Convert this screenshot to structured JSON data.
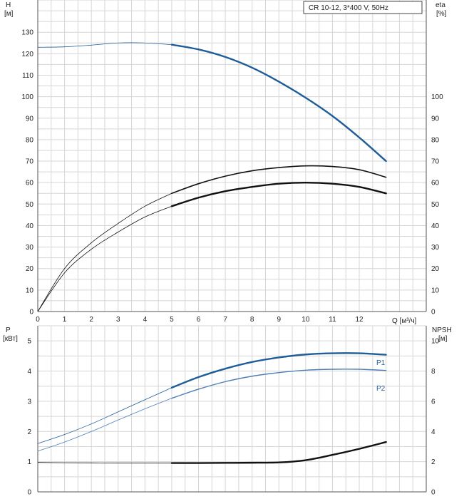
{
  "title_box": "CR 10-12, 3*400 V, 50Hz",
  "colors": {
    "head": "#1f5d99",
    "p1": "#1f5d99",
    "p2": "#4f7fb8",
    "eta": "#111111",
    "grid": "#d6d6d6",
    "axis": "#555555"
  },
  "chart_data": [
    {
      "type": "line",
      "xlabel": "Q [м³/ч]",
      "ylabel": "H\n[м]",
      "y2label": "eta\n[%]",
      "xlim": [
        0,
        14.5
      ],
      "ylim": [
        0,
        145
      ],
      "y2lim": [
        0,
        145
      ],
      "xticks": [
        0,
        1,
        2,
        3,
        4,
        5,
        6,
        7,
        8,
        9,
        10,
        11,
        12
      ],
      "yticks": [
        0,
        10,
        20,
        30,
        40,
        50,
        60,
        70,
        80,
        90,
        100,
        110,
        120,
        130
      ],
      "y2ticks": [
        0,
        10,
        20,
        30,
        40,
        50,
        60,
        70,
        80,
        90,
        100
      ],
      "grid": true,
      "series": [
        {
          "key": "head",
          "axis": "left",
          "x": [
            0,
            1,
            2,
            3,
            4,
            5,
            6,
            7,
            8,
            9,
            10,
            11,
            12,
            13
          ],
          "y": [
            123,
            123.2,
            124,
            125,
            125,
            124.2,
            122,
            118.5,
            113.5,
            107,
            99.5,
            91,
            81,
            70
          ],
          "thick_from": 5
        },
        {
          "key": "eta_upper",
          "axis": "right",
          "x": [
            0,
            1,
            2,
            3,
            4,
            5,
            6,
            7,
            8,
            9,
            10,
            11,
            12,
            13
          ],
          "y": [
            0,
            20,
            32,
            41,
            49,
            55,
            59.5,
            63,
            65.5,
            67,
            67.8,
            67.5,
            66,
            62.5
          ],
          "thick_from": 5
        },
        {
          "key": "eta_lower",
          "axis": "right",
          "x": [
            0,
            1,
            2,
            3,
            4,
            5,
            6,
            7,
            8,
            9,
            10,
            11,
            12,
            13
          ],
          "y": [
            0,
            18,
            29,
            37,
            44,
            49,
            53,
            56,
            58,
            59.5,
            60,
            59.5,
            58,
            55
          ],
          "thick_from": 5
        }
      ]
    },
    {
      "type": "line",
      "ylabel": "P\n[кВт]",
      "y2label": "NPSH\n[м]",
      "xlim": [
        0,
        14.5
      ],
      "ylim": [
        0,
        5.5
      ],
      "y2lim": [
        0,
        11
      ],
      "yticks": [
        0,
        1,
        2,
        3,
        4,
        5
      ],
      "y2ticks": [
        0,
        2,
        4,
        6,
        8,
        10
      ],
      "grid": true,
      "series": [
        {
          "key": "p1",
          "name": "P1",
          "axis": "left",
          "x": [
            0,
            1,
            2,
            3,
            4,
            5,
            6,
            7,
            8,
            9,
            10,
            11,
            12,
            13
          ],
          "y": [
            1.6,
            1.9,
            2.25,
            2.65,
            3.05,
            3.45,
            3.8,
            4.08,
            4.3,
            4.45,
            4.55,
            4.59,
            4.59,
            4.54
          ],
          "thick_from": 5
        },
        {
          "key": "p2",
          "name": "P2",
          "axis": "left",
          "x": [
            0,
            1,
            2,
            3,
            4,
            5,
            6,
            7,
            8,
            9,
            10,
            11,
            12,
            13
          ],
          "y": [
            1.35,
            1.65,
            2.0,
            2.38,
            2.75,
            3.1,
            3.4,
            3.65,
            3.83,
            3.95,
            4.03,
            4.06,
            4.06,
            4.02
          ],
          "thick_from": 5
        },
        {
          "key": "npsh",
          "axis": "right",
          "x": [
            0,
            1,
            2,
            3,
            4,
            5,
            6,
            7,
            8,
            9,
            10,
            11,
            12,
            13
          ],
          "y": [
            1.95,
            1.93,
            1.92,
            1.91,
            1.91,
            1.91,
            1.91,
            1.92,
            1.93,
            1.95,
            2.1,
            2.45,
            2.85,
            3.3
          ],
          "thick_from": 5
        }
      ]
    }
  ]
}
